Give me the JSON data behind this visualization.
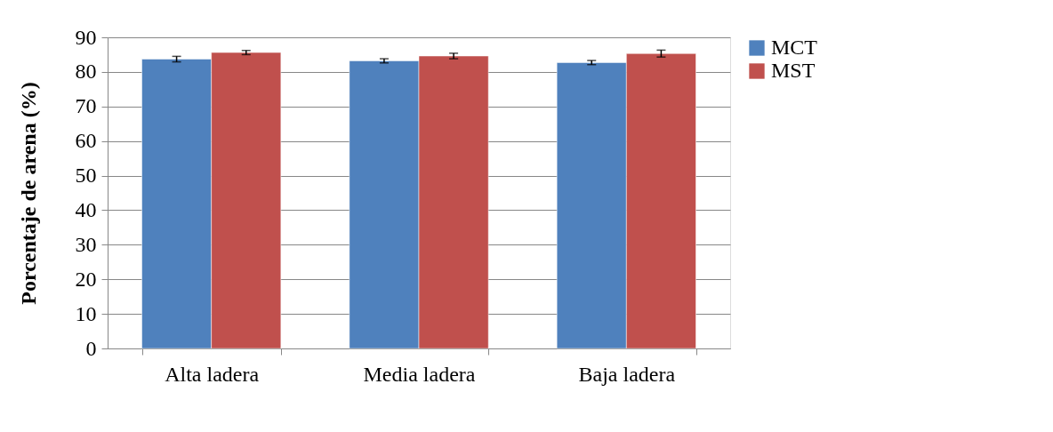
{
  "chart_data": {
    "type": "bar",
    "ylabel": "Porcentaje de arena (%)",
    "categories": [
      "Alta ladera",
      "Media ladera",
      "Baja ladera"
    ],
    "series": [
      {
        "name": "MCT",
        "color": "#4f81bd",
        "values": [
          83.7,
          83.2,
          82.7
        ],
        "errors": [
          0.8,
          0.6,
          0.6
        ]
      },
      {
        "name": "MST",
        "color": "#c0504d",
        "values": [
          85.6,
          84.6,
          85.3
        ],
        "errors": [
          0.6,
          0.8,
          1.0
        ]
      }
    ],
    "ylim": [
      0,
      90
    ],
    "yticks": [
      0,
      10,
      20,
      30,
      40,
      50,
      60,
      70,
      80,
      90
    ],
    "grid": "y",
    "legend": "right"
  }
}
